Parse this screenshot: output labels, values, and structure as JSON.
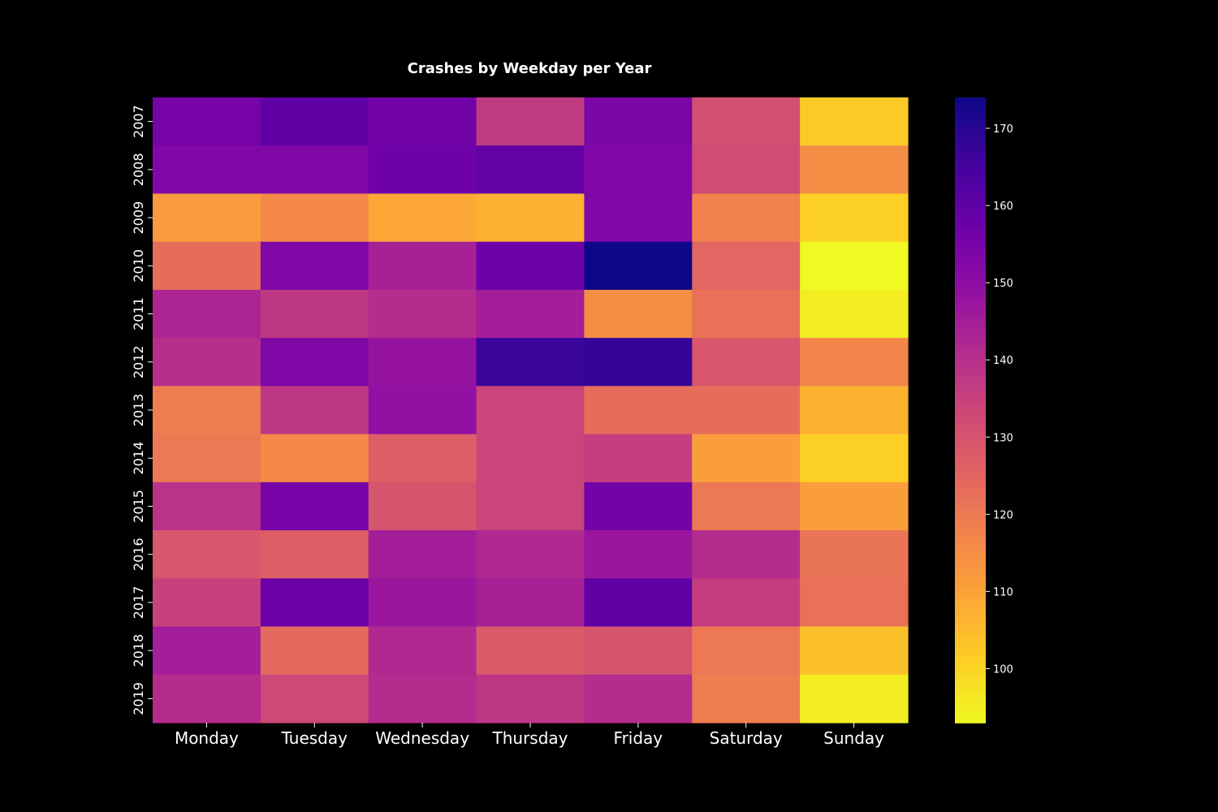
{
  "chart_data": {
    "type": "heatmap",
    "title": "Crashes by Weekday per Year",
    "xlabel": "",
    "ylabel": "",
    "x_categories": [
      "Monday",
      "Tuesday",
      "Wednesday",
      "Thursday",
      "Friday",
      "Saturday",
      "Sunday"
    ],
    "y_categories": [
      "2007",
      "2008",
      "2009",
      "2010",
      "2011",
      "2012",
      "2013",
      "2014",
      "2015",
      "2016",
      "2017",
      "2018",
      "2019"
    ],
    "values": [
      [
        155,
        160,
        156,
        137,
        154,
        131,
        102
      ],
      [
        153,
        153,
        157,
        159,
        153,
        132,
        115
      ],
      [
        112,
        116,
        109,
        107,
        153,
        118,
        101
      ],
      [
        123,
        153,
        144,
        157,
        174,
        125,
        93
      ],
      [
        143,
        138,
        141,
        145,
        115,
        122,
        95
      ],
      [
        140,
        153,
        148,
        167,
        168,
        129,
        117
      ],
      [
        119,
        138,
        149,
        134,
        123,
        123,
        107
      ],
      [
        120,
        116,
        127,
        134,
        136,
        111,
        101
      ],
      [
        139,
        155,
        130,
        134,
        156,
        120,
        111
      ],
      [
        129,
        127,
        145,
        142,
        147,
        141,
        121
      ],
      [
        135,
        158,
        147,
        144,
        160,
        136,
        122
      ],
      [
        145,
        124,
        142,
        128,
        130,
        120,
        104
      ],
      [
        141,
        133,
        141,
        138,
        141,
        119,
        95
      ]
    ],
    "colorscale": "plasma",
    "reversed": true,
    "vmin": 93,
    "vmax": 174,
    "colorbar_ticks": [
      100,
      110,
      120,
      130,
      140,
      150,
      160,
      170
    ],
    "colorbar_tick_labels": [
      "100",
      "110",
      "120",
      "130",
      "140",
      "150",
      "160",
      "170"
    ],
    "grid": false,
    "background": "#000000",
    "text_color": "#ffffff"
  }
}
